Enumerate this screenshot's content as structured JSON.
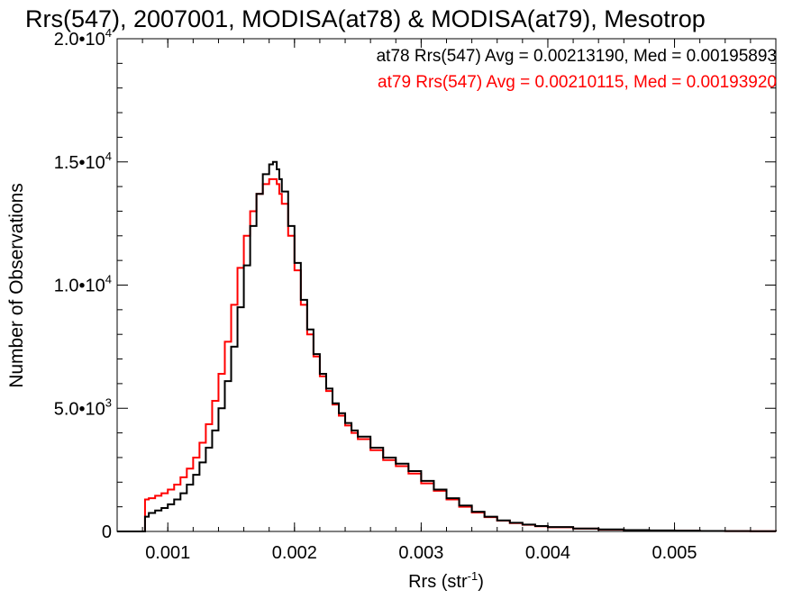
{
  "chart_data": {
    "type": "line",
    "title": "Rrs(547), 2007001, MODISA(at78) & MODISA(at79), Mesotrop",
    "xlabel": "Rrs (str",
    "xlabel_sup": "-1",
    "xlabel_close": ")",
    "ylabel": "Number of Observations",
    "xlim": [
      0.0006,
      0.0058
    ],
    "ylim": [
      0,
      20000
    ],
    "x_ticks": [
      {
        "value": 0.001,
        "label": "0.001"
      },
      {
        "value": 0.002,
        "label": "0.002"
      },
      {
        "value": 0.003,
        "label": "0.003"
      },
      {
        "value": 0.004,
        "label": "0.004"
      },
      {
        "value": 0.005,
        "label": "0.005"
      }
    ],
    "y_ticks": [
      {
        "value": 0,
        "mant": "0",
        "exp": ""
      },
      {
        "value": 5000,
        "mant": "5.0•10",
        "exp": "3"
      },
      {
        "value": 10000,
        "mant": "1.0•10",
        "exp": "4"
      },
      {
        "value": 15000,
        "mant": "1.5•10",
        "exp": "4"
      },
      {
        "value": 20000,
        "mant": "2.0•10",
        "exp": "4"
      }
    ],
    "grid": false,
    "legend_placement": "top-right",
    "series": [
      {
        "name": "at78",
        "color": "#000000",
        "stats_label": "at78 Rrs(547) Avg = 0.00213190, Med = 0.00195893",
        "x": [
          0.0008,
          0.00082,
          0.00085,
          0.0009,
          0.00095,
          0.001,
          0.00105,
          0.0011,
          0.00115,
          0.0012,
          0.00125,
          0.0013,
          0.00135,
          0.0014,
          0.00145,
          0.0015,
          0.00155,
          0.0016,
          0.00165,
          0.0017,
          0.00175,
          0.0018,
          0.00183,
          0.00186,
          0.00188,
          0.0019,
          0.00195,
          0.002,
          0.00205,
          0.0021,
          0.00215,
          0.0022,
          0.00225,
          0.0023,
          0.00235,
          0.0024,
          0.00245,
          0.0025,
          0.0026,
          0.0027,
          0.0028,
          0.0029,
          0.003,
          0.0031,
          0.0032,
          0.0033,
          0.0034,
          0.0035,
          0.0036,
          0.0037,
          0.0038,
          0.0039,
          0.004,
          0.0042,
          0.0044,
          0.0046,
          0.0048,
          0.005,
          0.0052,
          0.0054,
          0.0056,
          0.0058
        ],
        "y": [
          0,
          600,
          750,
          850,
          950,
          1100,
          1300,
          1550,
          1900,
          2300,
          2800,
          3400,
          4100,
          5000,
          6100,
          7500,
          9100,
          10800,
          12400,
          13700,
          14500,
          14900,
          15000,
          14700,
          14300,
          13800,
          12400,
          10900,
          9400,
          8200,
          7200,
          6400,
          5800,
          5200,
          4800,
          4400,
          4100,
          3850,
          3400,
          3000,
          2750,
          2450,
          2050,
          1700,
          1350,
          1050,
          800,
          600,
          450,
          350,
          280,
          220,
          180,
          120,
          80,
          55,
          40,
          30,
          20,
          15,
          10,
          5
        ]
      },
      {
        "name": "at79",
        "color": "#ff0000",
        "stats_label": "at79 Rrs(547) Avg = 0.00210115, Med = 0.00193920",
        "x": [
          0.0008,
          0.00082,
          0.00085,
          0.0009,
          0.00095,
          0.001,
          0.00105,
          0.0011,
          0.00115,
          0.0012,
          0.00125,
          0.0013,
          0.00135,
          0.0014,
          0.00145,
          0.0015,
          0.00155,
          0.0016,
          0.00165,
          0.0017,
          0.00175,
          0.0018,
          0.00183,
          0.00186,
          0.00188,
          0.0019,
          0.00195,
          0.002,
          0.00205,
          0.0021,
          0.00215,
          0.0022,
          0.00225,
          0.0023,
          0.00235,
          0.0024,
          0.00245,
          0.0025,
          0.0026,
          0.0027,
          0.0028,
          0.0029,
          0.003,
          0.0031,
          0.0032,
          0.0033,
          0.0034,
          0.0035,
          0.0036,
          0.0037,
          0.0038,
          0.0039,
          0.004,
          0.0042,
          0.0044,
          0.0046,
          0.0048,
          0.005,
          0.0052,
          0.0054,
          0.0056,
          0.0058
        ],
        "y": [
          0,
          1300,
          1350,
          1450,
          1550,
          1700,
          1900,
          2200,
          2550,
          3000,
          3600,
          4350,
          5300,
          6400,
          7700,
          9200,
          10700,
          12000,
          13000,
          13700,
          14100,
          14300,
          14300,
          14100,
          13700,
          13300,
          12000,
          10600,
          9200,
          8000,
          7100,
          6300,
          5700,
          5150,
          4700,
          4300,
          4000,
          3750,
          3300,
          2900,
          2650,
          2350,
          1950,
          1650,
          1300,
          1000,
          770,
          580,
          440,
          340,
          270,
          210,
          170,
          115,
          75,
          52,
          38,
          28,
          18,
          13,
          8,
          4
        ]
      }
    ]
  }
}
